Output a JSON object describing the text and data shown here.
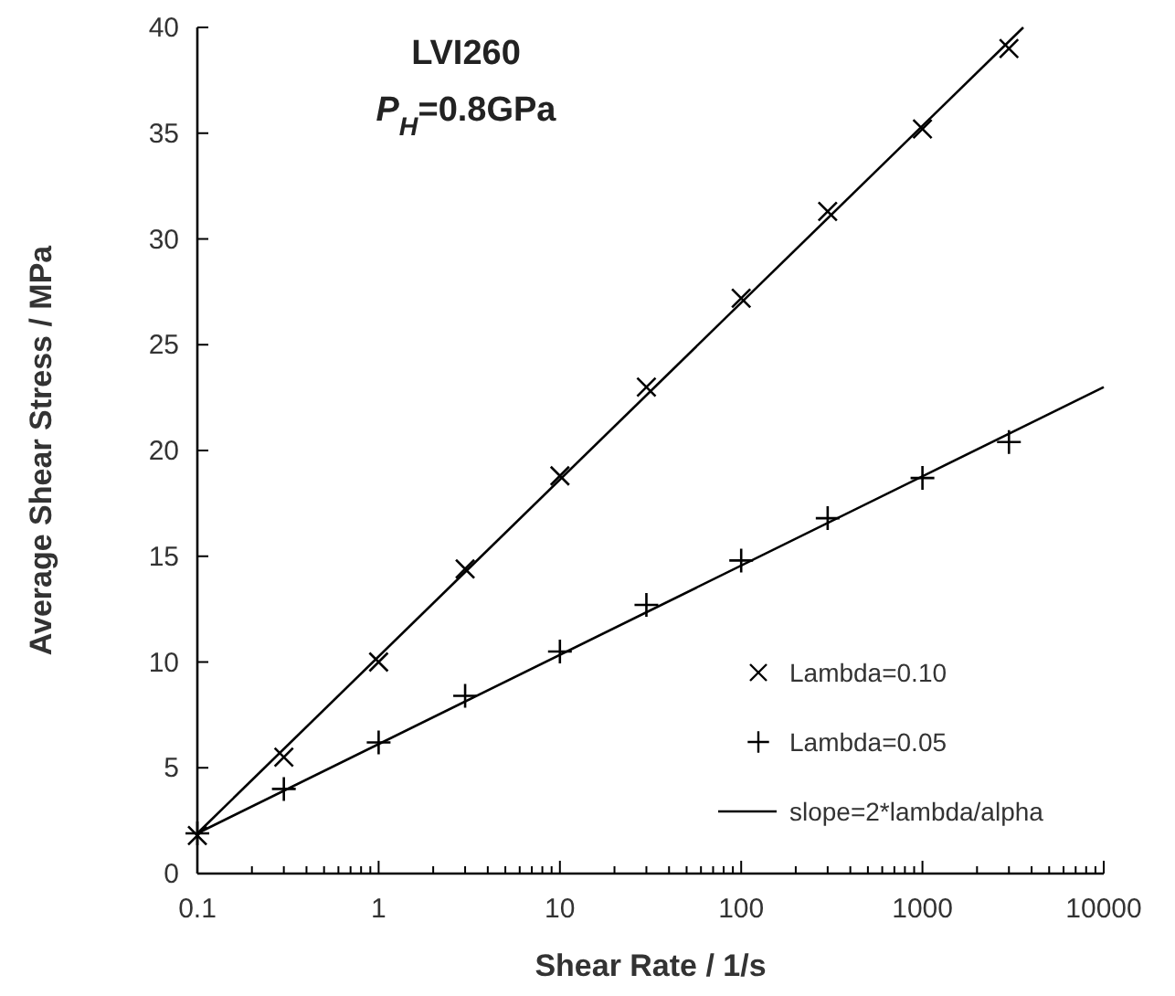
{
  "chart_data": {
    "type": "scatter",
    "title": "LVI260",
    "subtitle": "P$_{H}$=0.8GPa",
    "xlabel": "Shear Rate / 1/s",
    "ylabel": "Average Shear Stress / MPa",
    "log": "x",
    "xlim": [
      0.1,
      10000
    ],
    "xticks": [
      0.1,
      {
        "value": 0.2,
        "label": null
      },
      {
        "value": 0.3,
        "label": null
      },
      {
        "value": 0.4,
        "label": null
      },
      {
        "value": 0.5,
        "label": null
      },
      {
        "value": 0.6,
        "label": null
      },
      {
        "value": 0.7,
        "label": null
      },
      {
        "value": 0.8,
        "label": null
      },
      {
        "value": 0.9,
        "label": null
      },
      1,
      {
        "value": 2,
        "label": null
      },
      {
        "value": 3,
        "label": null
      },
      {
        "value": 4,
        "label": null
      },
      {
        "value": 5,
        "label": null
      },
      {
        "value": 6,
        "label": null
      },
      {
        "value": 7,
        "label": null
      },
      {
        "value": 8,
        "label": null
      },
      {
        "value": 9,
        "label": null
      },
      10,
      {
        "value": 20,
        "label": null
      },
      {
        "value": 30,
        "label": null
      },
      {
        "value": 40,
        "label": null
      },
      {
        "value": 50,
        "label": null
      },
      {
        "value": 60,
        "label": null
      },
      {
        "value": 70,
        "label": null
      },
      {
        "value": 80,
        "label": null
      },
      {
        "value": 90,
        "label": null
      },
      100,
      {
        "value": 200,
        "label": null
      },
      {
        "value": 300,
        "label": null
      },
      {
        "value": 400,
        "label": null
      },
      {
        "value": 500,
        "label": null
      },
      {
        "value": 600,
        "label": null
      },
      {
        "value": 700,
        "label": null
      },
      {
        "value": 800,
        "label": null
      },
      {
        "value": 900,
        "label": null
      },
      1000,
      {
        "value": 2000,
        "label": null
      },
      {
        "value": 3000,
        "label": null
      },
      {
        "value": 4000,
        "label": null
      },
      {
        "value": 5000,
        "label": null
      },
      {
        "value": 6000,
        "label": null
      },
      {
        "value": 7000,
        "label": null
      },
      {
        "value": 8000,
        "label": null
      },
      {
        "value": 9000,
        "label": null
      },
      10000
    ],
    "ylim": [
      0,
      40
    ],
    "yticks": [
      0,
      5,
      10,
      15,
      20,
      25,
      30,
      35,
      40
    ],
    "grid": false,
    "legend": "bottom right",
    "x": [
      0.1,
      0.3,
      1,
      3,
      10,
      30,
      100,
      300,
      1000,
      3000
    ],
    "series": [
      {
        "name": "Lambda=0.10",
        "color": "#000000",
        "marker": "x",
        "values": [
          1.8,
          5.5,
          10.0,
          14.4,
          18.8,
          23.0,
          27.2,
          31.3,
          35.2,
          39.0
        ]
      },
      {
        "name": "Lambda=0.05",
        "color": "#000000",
        "marker": "cross",
        "values": [
          1.9,
          4.0,
          6.2,
          8.4,
          10.5,
          12.7,
          14.8,
          16.8,
          18.7,
          20.4
        ]
      },
      {
        "name": "slope=2*lambda/alpha",
        "type": "line",
        "color": "#000000",
        "marker": "none",
        "line_style": "solid",
        "x": [
          0.1,
          3600
        ],
        "values": [
          1.9,
          40
        ]
      },
      {
        "type": "line",
        "color": "#000000",
        "marker": "none",
        "line_style": "solid",
        "x": [
          0.1,
          10000
        ],
        "values": [
          1.9,
          23
        ]
      }
    ]
  }
}
